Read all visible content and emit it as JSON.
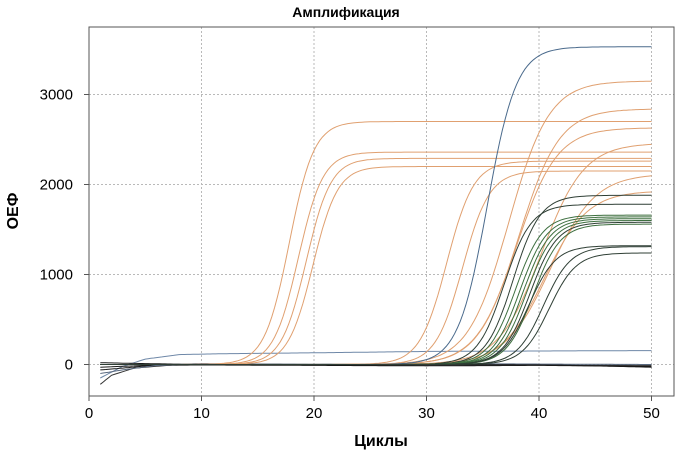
{
  "chart_data": {
    "type": "line",
    "title": "Амплификация",
    "xlabel": "Циклы",
    "ylabel": "ОЕФ",
    "xlim": [
      0,
      52
    ],
    "ylim": [
      -350,
      3750
    ],
    "xticks": [
      0,
      10,
      20,
      30,
      40,
      50
    ],
    "yticks": [
      0,
      1000,
      2000,
      3000
    ],
    "x_tick_labels": [
      "0",
      "10",
      "20",
      "30",
      "40",
      "50"
    ],
    "y_tick_labels": [
      "0",
      "1000",
      "2000",
      "3000"
    ],
    "grid": true,
    "x_range": [
      1,
      50
    ],
    "series_model": "sigmoid: baseline + plateau / (1 + exp(-(cycle - ct) / slope)); baseline 0 unless given",
    "series": [
      {
        "name": "orange-1",
        "group": "orange",
        "ct": 17.8,
        "plateau": 2700,
        "slope": 1.1,
        "color": "#e0a070"
      },
      {
        "name": "orange-2",
        "group": "orange",
        "ct": 18.6,
        "plateau": 2360,
        "slope": 1.1,
        "color": "#e0a070"
      },
      {
        "name": "orange-3",
        "group": "orange",
        "ct": 19.3,
        "plateau": 2290,
        "slope": 1.1,
        "color": "#e0a070"
      },
      {
        "name": "orange-4",
        "group": "orange",
        "ct": 19.9,
        "plateau": 2200,
        "slope": 1.1,
        "color": "#e0a070"
      },
      {
        "name": "orange-5",
        "group": "orange",
        "ct": 31.8,
        "plateau": 2260,
        "slope": 1.2,
        "color": "#e0a070"
      },
      {
        "name": "orange-6",
        "group": "orange",
        "ct": 33.2,
        "plateau": 2150,
        "slope": 1.2,
        "color": "#e0a070"
      },
      {
        "name": "orange-7",
        "group": "orange",
        "ct": 37.3,
        "plateau": 3150,
        "slope": 1.8,
        "color": "#e0a070"
      },
      {
        "name": "orange-8",
        "group": "orange",
        "ct": 38.2,
        "plateau": 2840,
        "slope": 1.8,
        "color": "#e0a070"
      },
      {
        "name": "orange-9",
        "group": "orange",
        "ct": 38.0,
        "plateau": 2630,
        "slope": 1.8,
        "color": "#e0a070"
      },
      {
        "name": "orange-10",
        "group": "orange",
        "ct": 40.2,
        "plateau": 2460,
        "slope": 1.9,
        "color": "#e0a070"
      },
      {
        "name": "orange-11",
        "group": "orange",
        "ct": 41.0,
        "plateau": 2120,
        "slope": 2.0,
        "color": "#e0a070"
      },
      {
        "name": "orange-12",
        "group": "orange",
        "ct": 40.5,
        "plateau": 1930,
        "slope": 1.9,
        "color": "#e0a070"
      },
      {
        "name": "blue-high",
        "group": "dark",
        "ct": 35.4,
        "plateau": 3530,
        "slope": 1.3,
        "color": "#4a6a8c"
      },
      {
        "name": "dark-1",
        "group": "dark",
        "ct": 36.9,
        "plateau": 1780,
        "slope": 1.2,
        "color": "#2f3f35"
      },
      {
        "name": "dark-2",
        "group": "dark",
        "ct": 37.7,
        "plateau": 1880,
        "slope": 1.2,
        "color": "#2f3f35"
      },
      {
        "name": "dark-3",
        "group": "dark",
        "ct": 37.9,
        "plateau": 1660,
        "slope": 1.2,
        "color": "#3d6f3f"
      },
      {
        "name": "dark-4",
        "group": "dark",
        "ct": 38.3,
        "plateau": 1640,
        "slope": 1.2,
        "color": "#3d6f3f"
      },
      {
        "name": "dark-5",
        "group": "dark",
        "ct": 38.6,
        "plateau": 1620,
        "slope": 1.2,
        "color": "#3d6f3f"
      },
      {
        "name": "dark-6",
        "group": "dark",
        "ct": 38.9,
        "plateau": 1600,
        "slope": 1.2,
        "color": "#3d6f3f"
      },
      {
        "name": "dark-7",
        "group": "dark",
        "ct": 39.2,
        "plateau": 1580,
        "slope": 1.2,
        "color": "#2f3f35"
      },
      {
        "name": "dark-8",
        "group": "dark",
        "ct": 39.5,
        "plateau": 1560,
        "slope": 1.2,
        "color": "#3d6f3f"
      },
      {
        "name": "dark-9",
        "group": "dark",
        "ct": 39.1,
        "plateau": 1320,
        "slope": 1.2,
        "color": "#2f3f35"
      },
      {
        "name": "dark-10",
        "group": "dark",
        "ct": 40.4,
        "plateau": 1310,
        "slope": 1.2,
        "color": "#2f3f35"
      },
      {
        "name": "dark-11",
        "group": "dark",
        "ct": 40.9,
        "plateau": 1240,
        "slope": 1.2,
        "color": "#2f3f35"
      }
    ],
    "baseline_series": [
      {
        "name": "baseline-blue",
        "color": "#6f88a8",
        "points": [
          [
            1,
            -150
          ],
          [
            3,
            -20
          ],
          [
            5,
            60
          ],
          [
            8,
            110
          ],
          [
            12,
            120
          ],
          [
            20,
            130
          ],
          [
            30,
            145
          ],
          [
            40,
            150
          ],
          [
            50,
            155
          ]
        ]
      },
      {
        "name": "baseline-1",
        "color": "#1a1a1a",
        "points": [
          [
            1,
            -30
          ],
          [
            5,
            -10
          ],
          [
            10,
            -5
          ],
          [
            20,
            -10
          ],
          [
            30,
            -15
          ],
          [
            40,
            -10
          ],
          [
            50,
            -20
          ]
        ]
      },
      {
        "name": "baseline-2",
        "color": "#1a1a1a",
        "points": [
          [
            1,
            -60
          ],
          [
            3,
            -40
          ],
          [
            6,
            -5
          ],
          [
            12,
            5
          ],
          [
            20,
            -5
          ],
          [
            30,
            -5
          ],
          [
            40,
            0
          ],
          [
            50,
            -30
          ]
        ]
      },
      {
        "name": "baseline-3",
        "color": "#333333",
        "points": [
          [
            1,
            -220
          ],
          [
            2,
            -120
          ],
          [
            4,
            -40
          ],
          [
            8,
            0
          ],
          [
            15,
            5
          ],
          [
            25,
            0
          ],
          [
            35,
            -5
          ],
          [
            50,
            -10
          ]
        ]
      },
      {
        "name": "baseline-4",
        "color": "#5a6a80",
        "points": [
          [
            1,
            -100
          ],
          [
            3,
            -60
          ],
          [
            6,
            -10
          ],
          [
            10,
            10
          ],
          [
            20,
            0
          ],
          [
            30,
            10
          ],
          [
            40,
            5
          ],
          [
            50,
            0
          ]
        ]
      },
      {
        "name": "baseline-5",
        "color": "#1a1a1a",
        "points": [
          [
            1,
            20
          ],
          [
            5,
            10
          ],
          [
            10,
            0
          ],
          [
            20,
            -5
          ],
          [
            30,
            0
          ],
          [
            40,
            -5
          ],
          [
            50,
            -25
          ]
        ]
      }
    ]
  }
}
